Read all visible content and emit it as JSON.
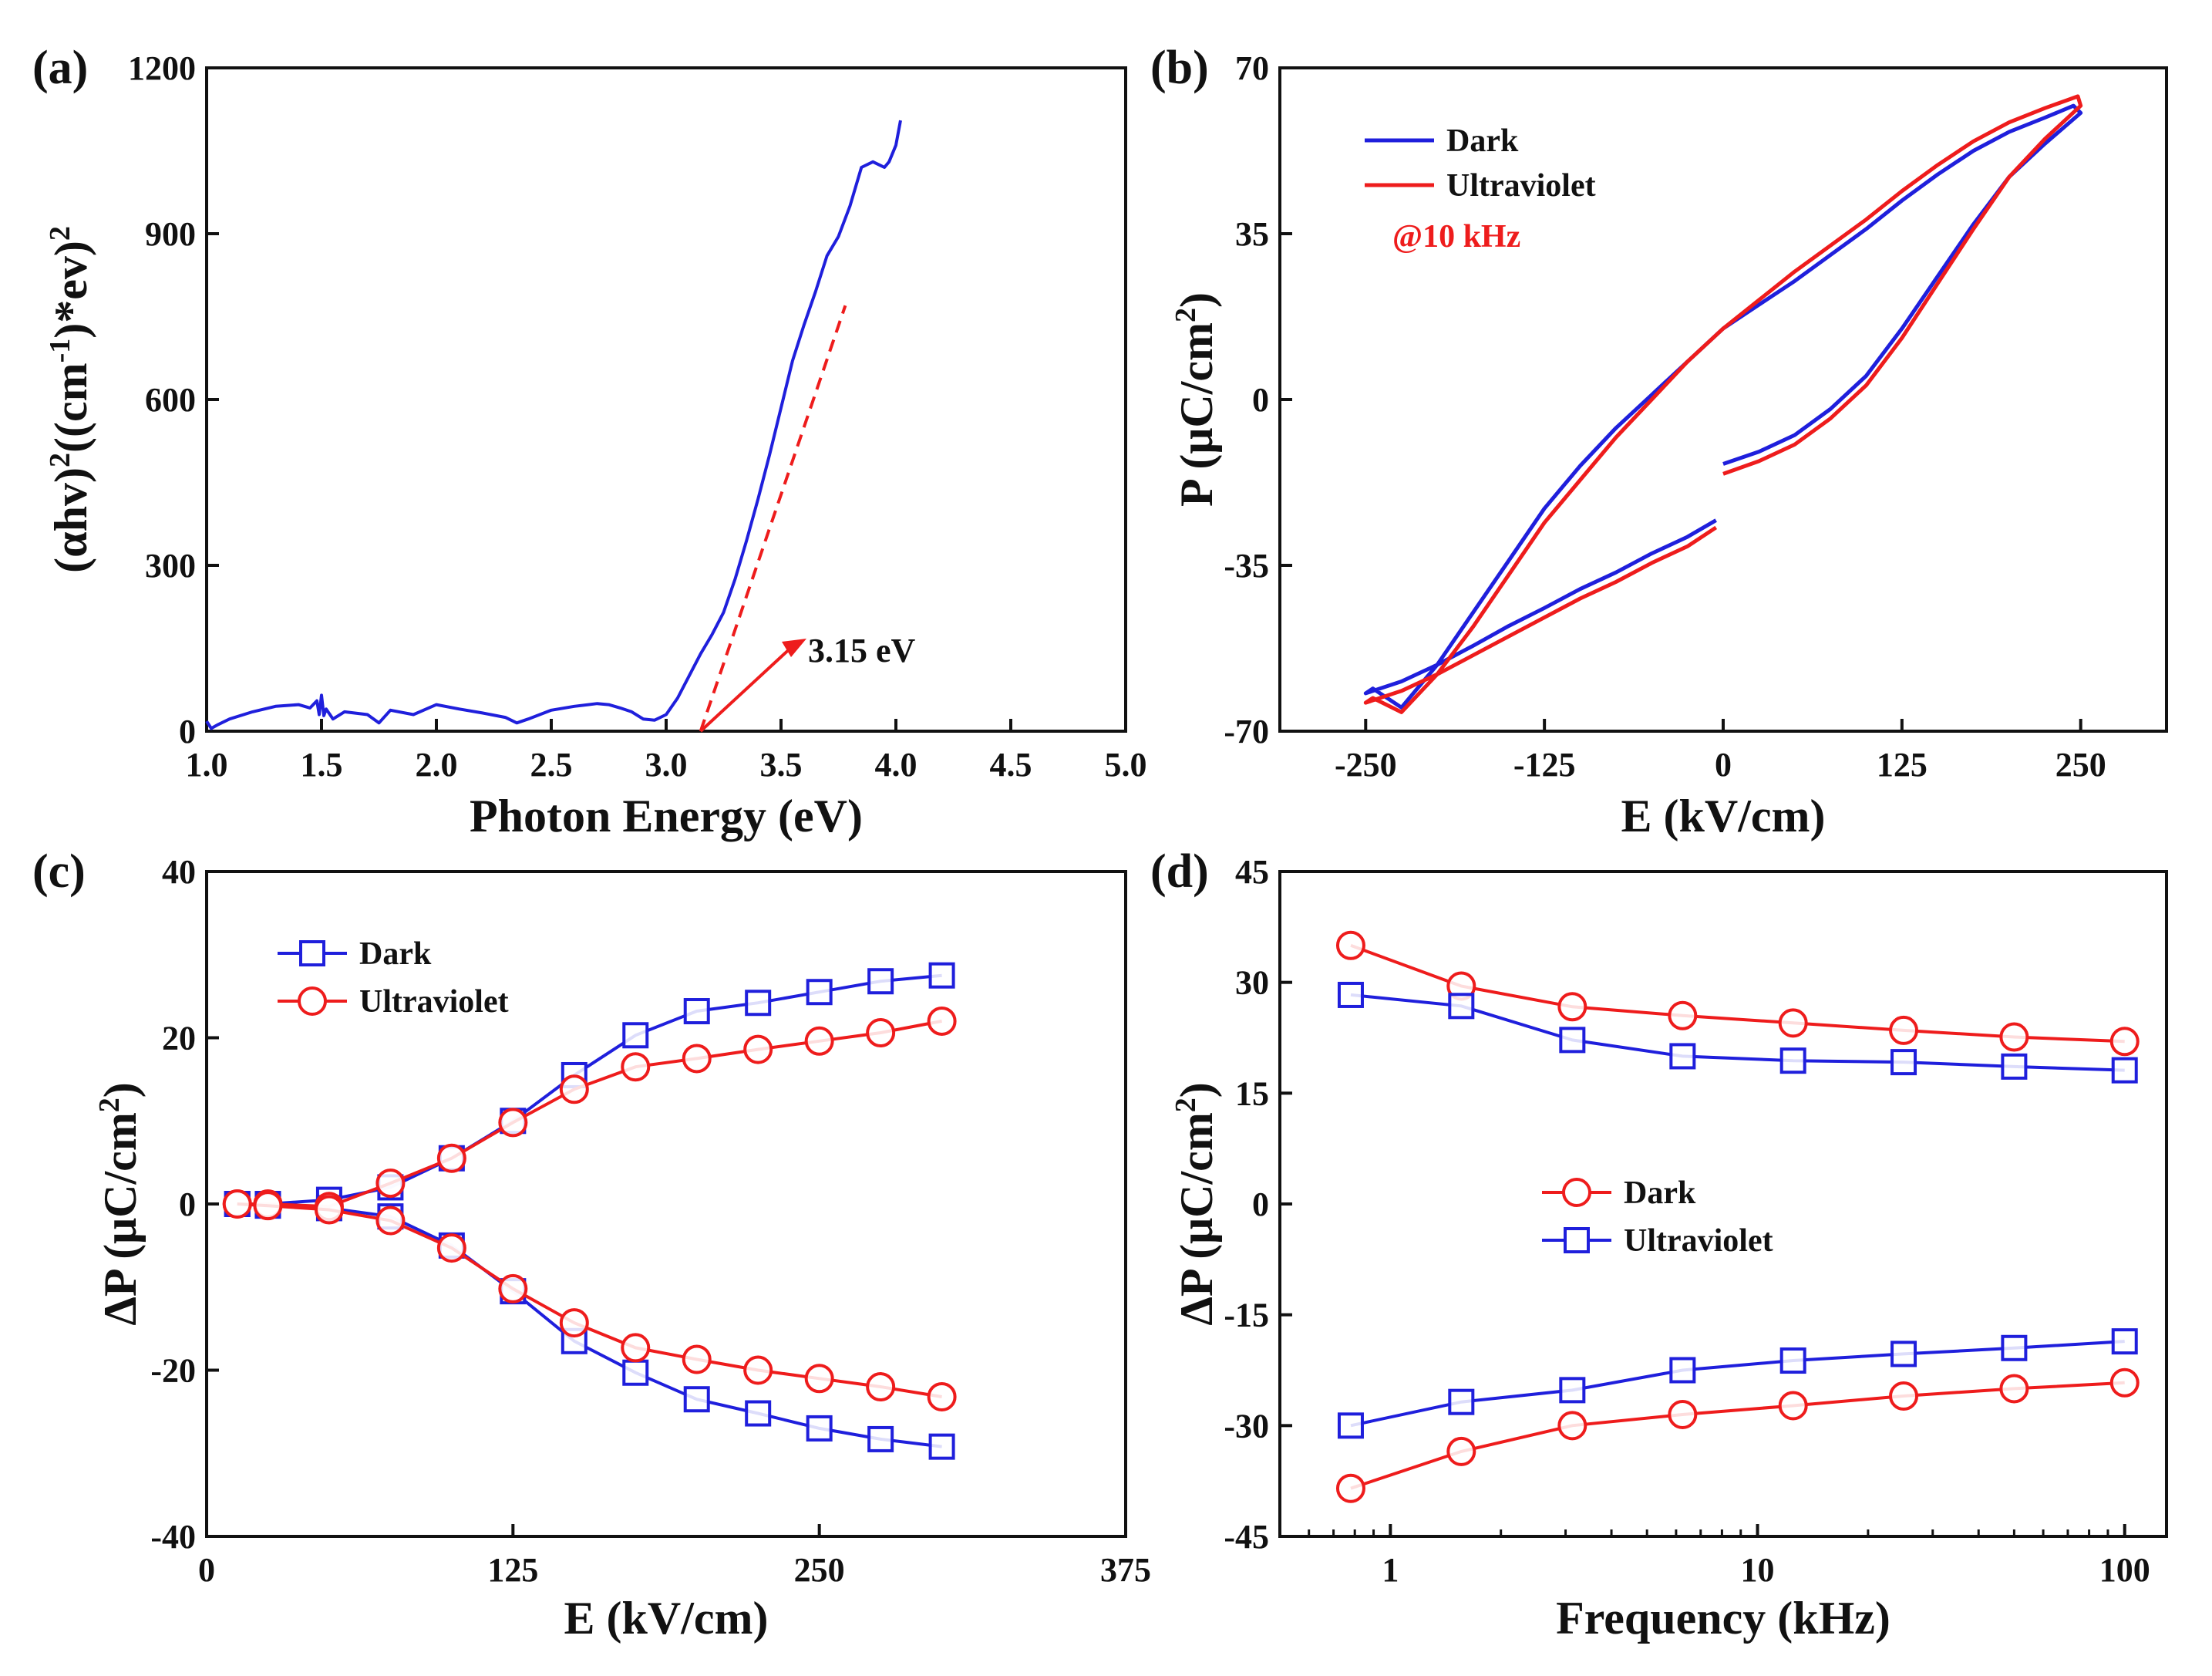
{
  "figure": {
    "panels": {
      "a": {
        "label": "(a)",
        "xlabel": "Photon Energy (eV)",
        "ylabel_parts": [
          "(αhv)",
          "2",
          "((cm",
          "-1",
          ")*ev)",
          "2"
        ],
        "annotation": "3.15 eV",
        "colors": {
          "curve": "#1f1fdc",
          "fit": "#ee1c1c"
        }
      },
      "b": {
        "label": "(b)",
        "xlabel": "E (kV/cm)",
        "ylabel_parts": [
          "P (μC/cm",
          "2",
          ")"
        ],
        "legend": [
          "Dark",
          "Ultraviolet"
        ],
        "note": "@10 kHz",
        "colors": {
          "dark": "#1f1fdc",
          "uv": "#ee1c1c"
        }
      },
      "c": {
        "label": "(c)",
        "xlabel": "E (kV/cm)",
        "ylabel_parts": [
          "ΔP (μC/cm",
          "2",
          ")"
        ],
        "legend": [
          "Dark",
          "Ultraviolet"
        ],
        "colors": {
          "dark": "#1f1fdc",
          "uv": "#ee1c1c"
        }
      },
      "d": {
        "label": "(d)",
        "xlabel": "Frequency (kHz)",
        "ylabel_parts": [
          "ΔP (μC/cm",
          "2",
          ")"
        ],
        "legend": [
          "Dark",
          "Ultraviolet"
        ],
        "colors": {
          "dark": "#ee1c1c",
          "uv": "#1f1fdc"
        }
      }
    }
  },
  "chart_data": [
    {
      "panel": "a",
      "type": "line",
      "xlabel": "Photon Energy (eV)",
      "ylabel": "(αhv)^2((cm^-1)*ev)^2",
      "xlim": [
        1.0,
        5.0
      ],
      "ylim": [
        0,
        1200
      ],
      "xticks": [
        "1.0",
        "1.5",
        "2.0",
        "2.5",
        "3.0",
        "3.5",
        "4.0",
        "4.5",
        "5.0"
      ],
      "yticks": [
        "0",
        "300",
        "600",
        "900",
        "1200"
      ],
      "series": [
        {
          "x": [
            1.0,
            1.02,
            1.05,
            1.1,
            1.2,
            1.3,
            1.4,
            1.45,
            1.48,
            1.49,
            1.5,
            1.51,
            1.52,
            1.55,
            1.6,
            1.7,
            1.75,
            1.8,
            1.9,
            2.0,
            2.1,
            2.2,
            2.3,
            2.35,
            2.4,
            2.5,
            2.6,
            2.7,
            2.75,
            2.8,
            2.85,
            2.9,
            2.95,
            3.0,
            3.05,
            3.1,
            3.15,
            3.2,
            3.25,
            3.3,
            3.35,
            3.4,
            3.45,
            3.5,
            3.55,
            3.6,
            3.65,
            3.7,
            3.75,
            3.8,
            3.85,
            3.9,
            3.95,
            3.97,
            4.0,
            4.02
          ],
          "y": [
            18,
            5,
            12,
            22,
            35,
            45,
            48,
            42,
            55,
            30,
            65,
            28,
            40,
            22,
            35,
            30,
            15,
            38,
            30,
            48,
            40,
            33,
            25,
            15,
            22,
            38,
            45,
            50,
            48,
            42,
            35,
            22,
            20,
            30,
            60,
            100,
            140,
            175,
            215,
            275,
            345,
            420,
            500,
            585,
            670,
            735,
            795,
            860,
            895,
            950,
            1020,
            1030,
            1020,
            1030,
            1060,
            1105
          ]
        }
      ],
      "fit_line": {
        "x": [
          3.15,
          3.78
        ],
        "y": [
          0,
          770
        ]
      },
      "annotation": {
        "text": "3.15 eV",
        "x": 3.15
      }
    },
    {
      "panel": "b",
      "type": "line",
      "xlabel": "E (kV/cm)",
      "ylabel": "P (μC/cm^2)",
      "xlim": [
        -310,
        310
      ],
      "ylim": [
        -70,
        70
      ],
      "xticks": [
        "-250",
        "-125",
        "0",
        "125",
        "250"
      ],
      "yticks": [
        "-70",
        "-35",
        "0",
        "35",
        "70"
      ],
      "note": "@10 kHz",
      "series": [
        {
          "name": "Dark",
          "x": [
            0,
            25,
            50,
            75,
            100,
            125,
            150,
            175,
            200,
            225,
            250,
            245,
            225,
            200,
            175,
            150,
            125,
            100,
            75,
            50,
            25,
            0,
            -25,
            -50,
            -75,
            -100,
            -125,
            -150,
            -175,
            -200,
            -225,
            -245,
            -250,
            -225,
            -200,
            -175,
            -150,
            -125,
            -100,
            -75,
            -50,
            -25,
            -5
          ],
          "y": [
            -13.6,
            -11,
            -7.5,
            -2,
            5,
            15,
            26,
            37,
            47,
            54,
            60.5,
            62,
            59.5,
            56.5,
            52.5,
            47.5,
            42,
            36,
            30.5,
            25,
            20,
            15,
            8,
            1,
            -6,
            -14,
            -23,
            -34,
            -45,
            -56,
            -65,
            -61,
            -62,
            -59.5,
            -56,
            -52,
            -47.8,
            -44,
            -40,
            -36.5,
            -32.5,
            -29,
            -25.5
          ]
        },
        {
          "name": "Ultraviolet",
          "x": [
            0,
            25,
            50,
            75,
            100,
            125,
            150,
            175,
            200,
            225,
            250,
            248,
            225,
            200,
            175,
            150,
            125,
            100,
            75,
            50,
            25,
            0,
            -25,
            -50,
            -75,
            -100,
            -125,
            -150,
            -175,
            -200,
            -225,
            -245,
            -250,
            -225,
            -200,
            -175,
            -150,
            -125,
            -100,
            -75,
            -50,
            -25,
            -5
          ],
          "y": [
            -15.7,
            -13,
            -9.5,
            -4,
            3,
            13,
            24.5,
            36,
            47,
            55,
            62,
            64,
            61.5,
            58.5,
            54.5,
            49.5,
            44,
            38,
            32.5,
            27,
            21,
            15,
            8,
            0,
            -8,
            -17,
            -26,
            -37,
            -48,
            -58,
            -66,
            -63,
            -64,
            -61.5,
            -58,
            -54,
            -50,
            -46,
            -42,
            -38.5,
            -34.5,
            -31,
            -27
          ]
        }
      ]
    },
    {
      "panel": "c",
      "type": "line",
      "xlabel": "E (kV/cm)",
      "ylabel": "ΔP (μC/cm^2)",
      "xlim": [
        0,
        375
      ],
      "ylim": [
        -40,
        40
      ],
      "xticks": [
        "0",
        "125",
        "250",
        "375"
      ],
      "yticks": [
        "-40",
        "-20",
        "0",
        "20",
        "40"
      ],
      "x": [
        12.5,
        25,
        50,
        75,
        100,
        125,
        150,
        175,
        200,
        225,
        250,
        275,
        300
      ],
      "series": [
        {
          "name": "Dark",
          "branch": "positive",
          "values": [
            0,
            0,
            0.5,
            2,
            5.5,
            10,
            15.5,
            20.3,
            23.2,
            24.2,
            25.5,
            26.8,
            27.5
          ]
        },
        {
          "name": "Dark",
          "branch": "negative",
          "values": [
            0,
            -0.2,
            -0.5,
            -1.5,
            -5,
            -10.5,
            -16.5,
            -20.3,
            -23.5,
            -25.2,
            -27,
            -28.3,
            -29.2
          ]
        },
        {
          "name": "Ultraviolet",
          "branch": "positive",
          "values": [
            0,
            0,
            -0.3,
            2.5,
            5.5,
            9.8,
            13.8,
            16.5,
            17.5,
            18.6,
            19.6,
            20.6,
            22
          ]
        },
        {
          "name": "Ultraviolet",
          "branch": "negative",
          "values": [
            0,
            -0.2,
            -0.7,
            -2,
            -5.3,
            -10.2,
            -14.3,
            -17.3,
            -18.7,
            -20,
            -21,
            -22,
            -23.2
          ]
        }
      ]
    },
    {
      "panel": "d",
      "type": "line",
      "xlabel": "Frequency (kHz)",
      "ylabel": "ΔP (μC/cm^2)",
      "xscale": "log",
      "xlim": [
        0.5,
        130
      ],
      "ylim": [
        -45,
        45
      ],
      "xticks": [
        "1",
        "10",
        "100"
      ],
      "yticks": [
        "-45",
        "-30",
        "-15",
        "0",
        "15",
        "30",
        "45"
      ],
      "x": [
        0.78,
        1.56,
        3.13,
        6.25,
        12.5,
        25,
        50,
        100
      ],
      "series": [
        {
          "name": "Dark",
          "branch": "positive",
          "values": [
            35,
            29.5,
            26.7,
            25.5,
            24.5,
            23.5,
            22.6,
            22
          ]
        },
        {
          "name": "Dark",
          "branch": "negative",
          "values": [
            -38.5,
            -33.5,
            -30,
            -28.5,
            -27.3,
            -26,
            -25,
            -24.2
          ]
        },
        {
          "name": "Ultraviolet",
          "branch": "positive",
          "values": [
            28.3,
            26.8,
            22.2,
            20,
            19.4,
            19.2,
            18.6,
            18.1
          ]
        },
        {
          "name": "Ultraviolet",
          "branch": "negative",
          "values": [
            -30,
            -26.8,
            -25.2,
            -22.5,
            -21.2,
            -20.3,
            -19.5,
            -18.6
          ]
        }
      ]
    }
  ]
}
